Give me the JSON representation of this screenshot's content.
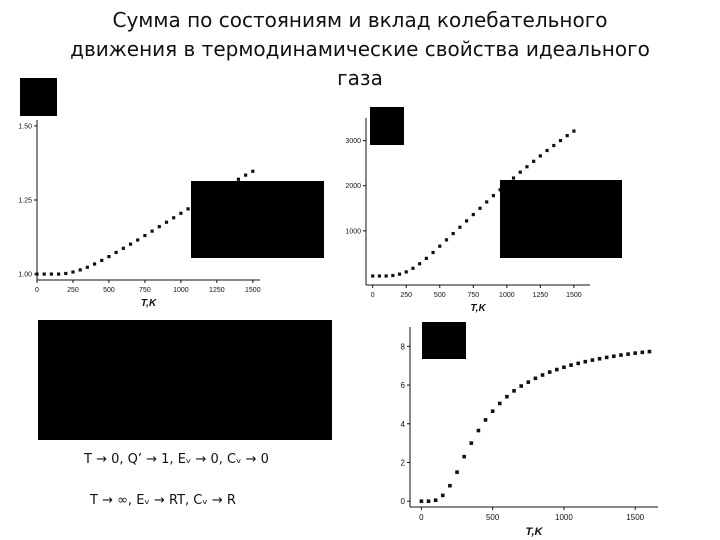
{
  "title": {
    "line1": "Сумма по состояниям и вклад колебательного",
    "line2": "движения в термодинамические свойства идеального",
    "line3": "газа"
  },
  "colors": {
    "background": "#ffffff",
    "text": "#111111",
    "marker": "#111111",
    "mask": "#000000"
  },
  "formulas": {
    "low_t": "T → 0,  Q’ → 1, Eᵥ → 0, Cᵥ → 0",
    "high_t": "T → ∞, Eᵥ → RT,  Cᵥ → R"
  },
  "chart_data": [
    {
      "type": "scatter",
      "xlabel": "T,K",
      "ylabel": "",
      "xlim": [
        0,
        1550
      ],
      "ylim": [
        0.98,
        1.52
      ],
      "xticks": [
        "0",
        "250",
        "500",
        "750",
        "1000",
        "1250",
        "1500"
      ],
      "yticks": [
        "1.00",
        "1.25",
        "1.50"
      ],
      "grid": false,
      "x": [
        0,
        50,
        100,
        150,
        200,
        250,
        300,
        350,
        400,
        450,
        500,
        550,
        600,
        650,
        700,
        750,
        800,
        850,
        900,
        950,
        1000,
        1050,
        1100,
        1150,
        1200,
        1250,
        1300,
        1350,
        1400,
        1450,
        1500
      ],
      "y": [
        1.0,
        1.0,
        1.0,
        1.0,
        1.002,
        1.007,
        1.014,
        1.023,
        1.034,
        1.046,
        1.059,
        1.073,
        1.087,
        1.101,
        1.115,
        1.13,
        1.145,
        1.16,
        1.175,
        1.19,
        1.205,
        1.22,
        1.234,
        1.249,
        1.263,
        1.278,
        1.292,
        1.306,
        1.32,
        1.334,
        1.347
      ]
    },
    {
      "type": "scatter",
      "xlabel": "T,K",
      "ylabel": "",
      "xlim": [
        -50,
        1620
      ],
      "ylim": [
        -200,
        3500
      ],
      "xticks": [
        "0",
        "250",
        "500",
        "750",
        "1000",
        "1250",
        "1500"
      ],
      "yticks": [
        "1000",
        "2000",
        "3000"
      ],
      "grid": false,
      "x": [
        0,
        50,
        100,
        150,
        200,
        250,
        300,
        350,
        400,
        450,
        500,
        550,
        600,
        650,
        700,
        750,
        800,
        850,
        900,
        950,
        1000,
        1050,
        1100,
        1150,
        1200,
        1250,
        1300,
        1350,
        1400,
        1450,
        1500
      ],
      "y": [
        0,
        0,
        0,
        10,
        40,
        90,
        170,
        270,
        390,
        520,
        660,
        800,
        940,
        1080,
        1220,
        1360,
        1500,
        1640,
        1780,
        1910,
        2040,
        2170,
        2300,
        2420,
        2540,
        2660,
        2780,
        2890,
        3000,
        3110,
        3210
      ]
    },
    {
      "type": "scatter",
      "xlabel": "T,K",
      "ylabel": "",
      "xlim": [
        -80,
        1660
      ],
      "ylim": [
        -0.3,
        9
      ],
      "xticks": [
        "0",
        "500",
        "1000",
        "1500"
      ],
      "yticks": [
        "0",
        "2",
        "4",
        "6",
        "8"
      ],
      "grid": false,
      "x": [
        0,
        50,
        100,
        150,
        200,
        250,
        300,
        350,
        400,
        450,
        500,
        550,
        600,
        650,
        700,
        750,
        800,
        850,
        900,
        950,
        1000,
        1050,
        1100,
        1150,
        1200,
        1250,
        1300,
        1350,
        1400,
        1450,
        1500,
        1550,
        1600
      ],
      "y": [
        0,
        0,
        0.05,
        0.3,
        0.8,
        1.5,
        2.3,
        3.0,
        3.65,
        4.2,
        4.65,
        5.05,
        5.4,
        5.7,
        5.95,
        6.15,
        6.35,
        6.52,
        6.67,
        6.8,
        6.92,
        7.03,
        7.12,
        7.21,
        7.29,
        7.36,
        7.43,
        7.49,
        7.55,
        7.6,
        7.65,
        7.69,
        7.73
      ]
    }
  ]
}
